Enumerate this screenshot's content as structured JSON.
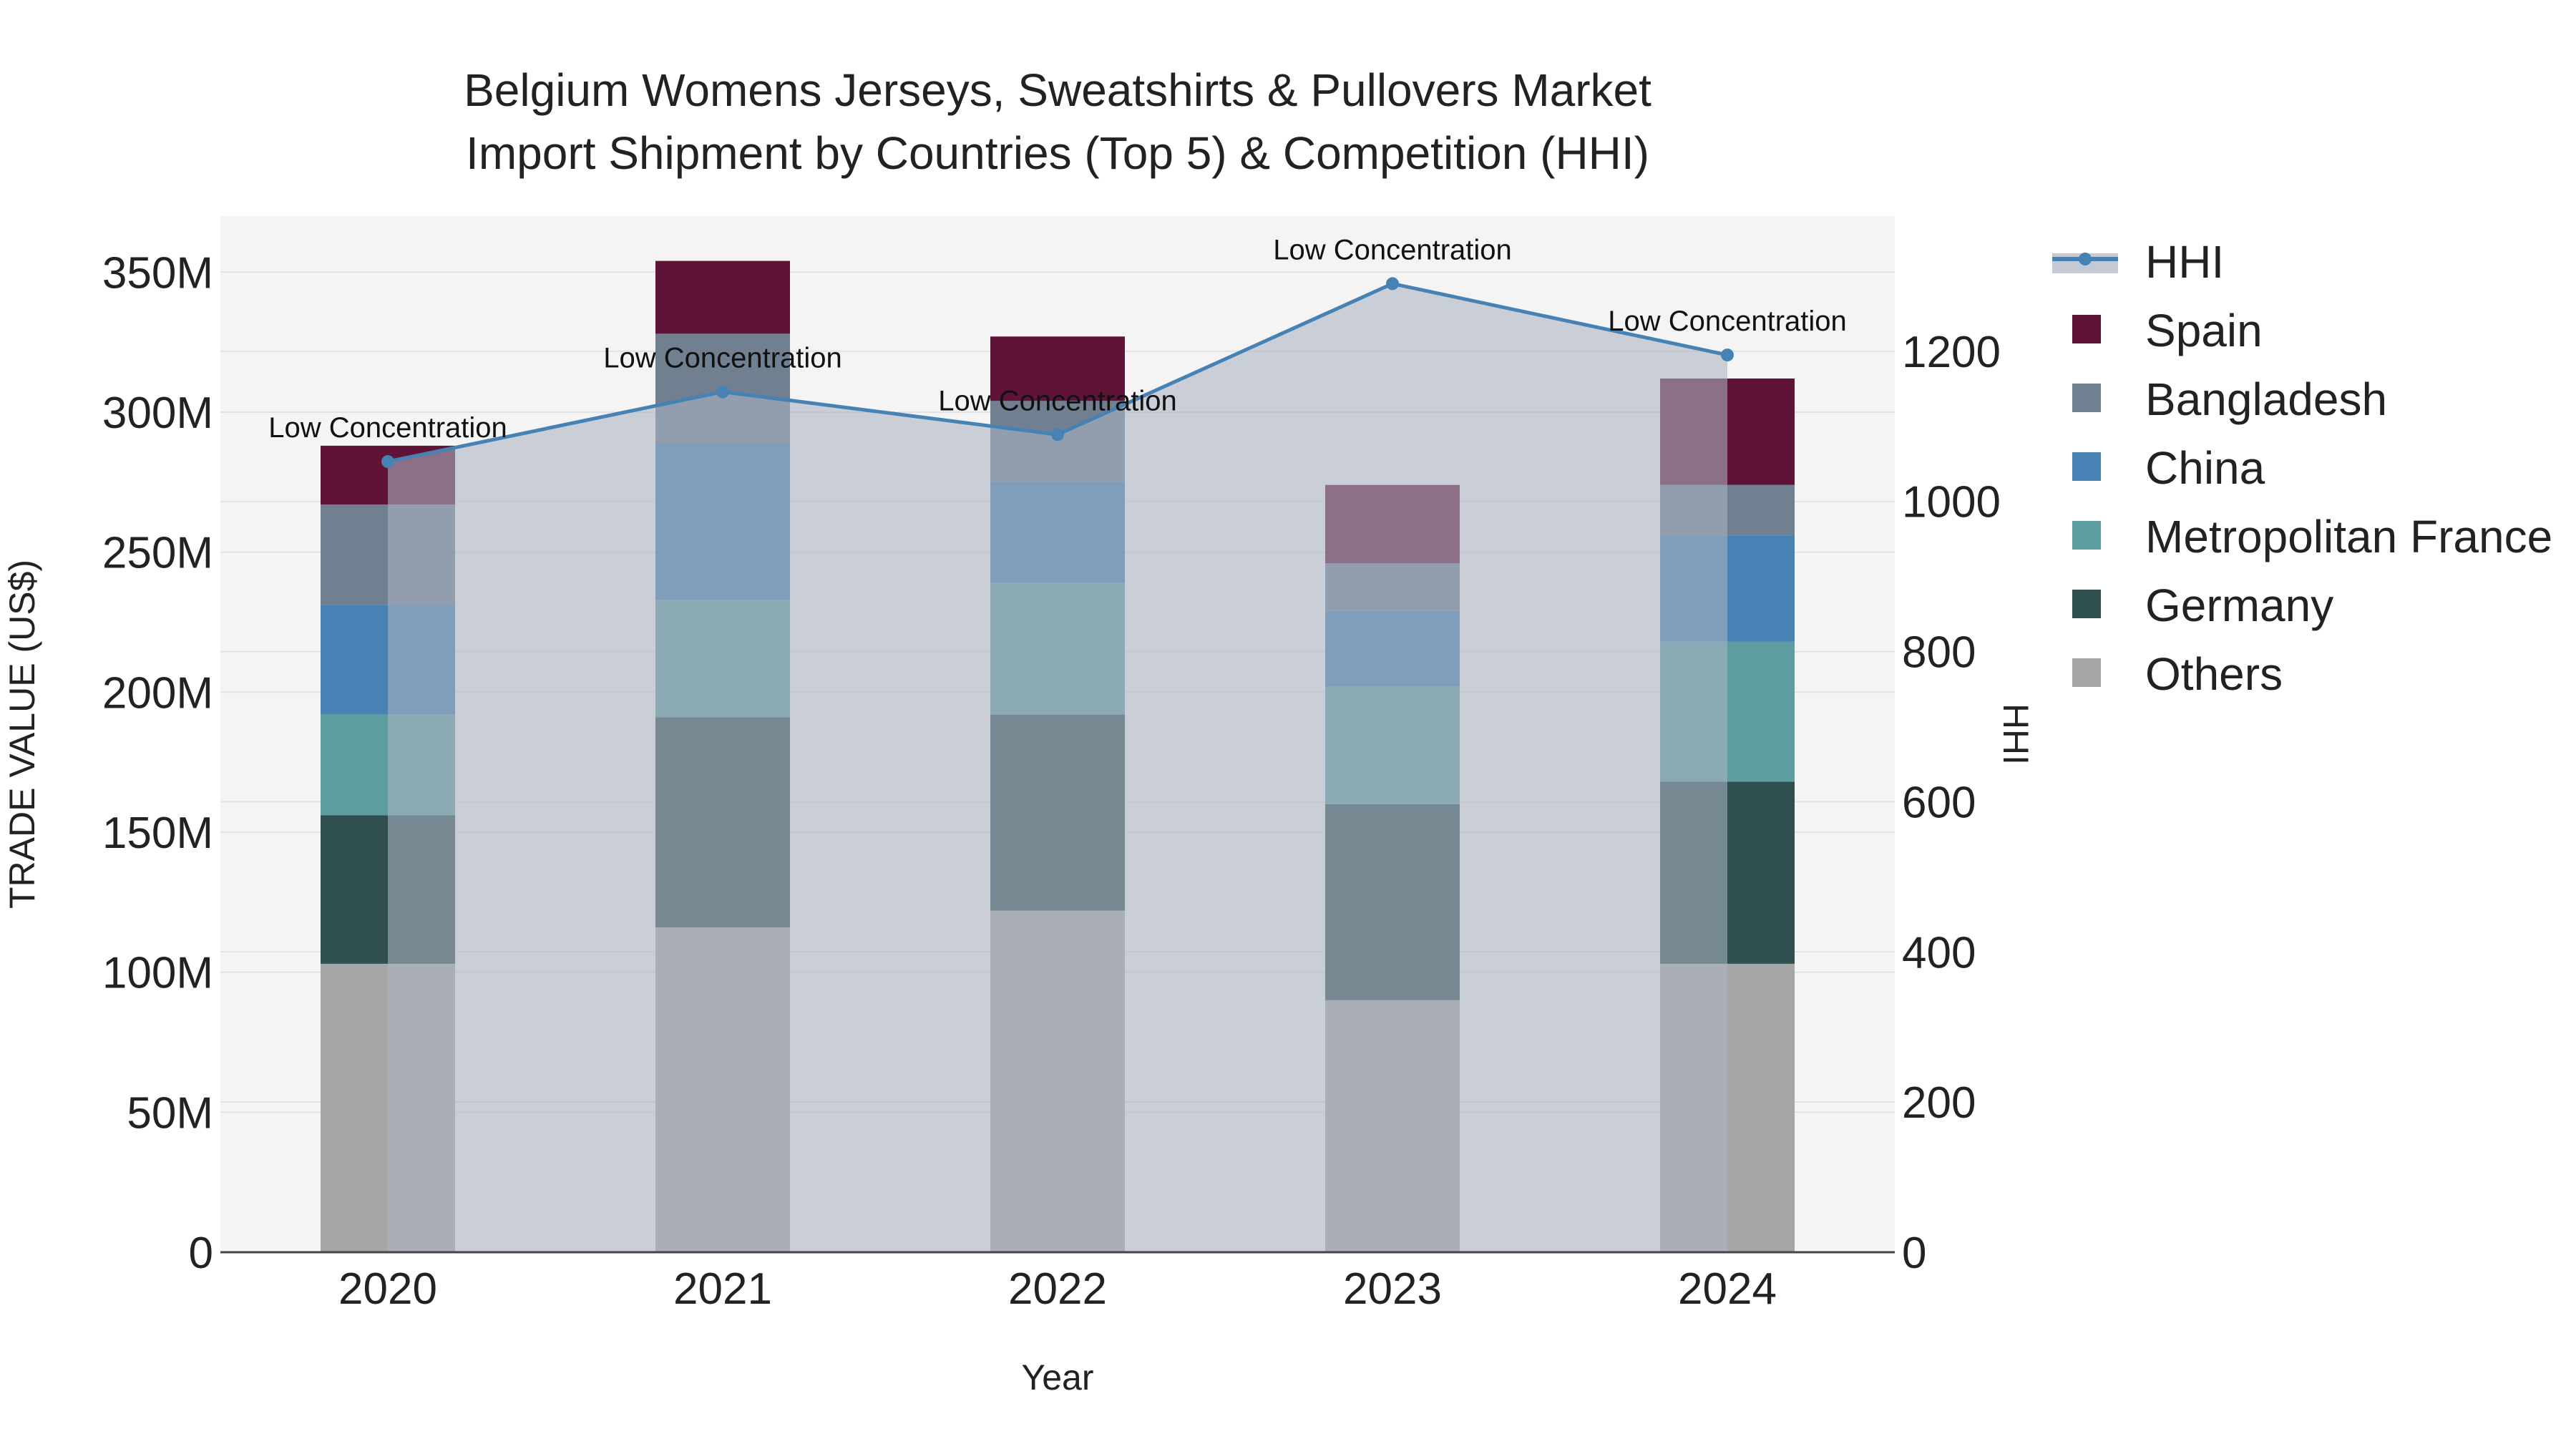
{
  "chart_data": {
    "type": "bar",
    "title_lines": [
      "Belgium Womens Jerseys, Sweatshirts & Pullovers Market",
      "Import Shipment by Countries (Top 5) & Competition (HHI)"
    ],
    "xlabel": "Year",
    "ylabel": "TRADE VALUE (US$)",
    "y2label": "HHI",
    "categories": [
      "2020",
      "2021",
      "2022",
      "2023",
      "2024"
    ],
    "ylim": [
      0,
      370000000
    ],
    "y2lim": [
      0,
      1380
    ],
    "yticks": [
      {
        "value": 0,
        "label": "0"
      },
      {
        "value": 50000000,
        "label": "50M"
      },
      {
        "value": 100000000,
        "label": "100M"
      },
      {
        "value": 150000000,
        "label": "150M"
      },
      {
        "value": 200000000,
        "label": "200M"
      },
      {
        "value": 250000000,
        "label": "250M"
      },
      {
        "value": 300000000,
        "label": "300M"
      },
      {
        "value": 350000000,
        "label": "350M"
      }
    ],
    "y2ticks": [
      {
        "value": 0,
        "label": "0"
      },
      {
        "value": 200,
        "label": "200"
      },
      {
        "value": 400,
        "label": "400"
      },
      {
        "value": 600,
        "label": "600"
      },
      {
        "value": 800,
        "label": "800"
      },
      {
        "value": 1000,
        "label": "1000"
      },
      {
        "value": 1200,
        "label": "1200"
      }
    ],
    "stack_order": [
      "Others",
      "Germany",
      "Metropolitan France",
      "China",
      "Bangladesh",
      "Spain"
    ],
    "series": [
      {
        "name": "Others",
        "color": "#a6a6a6",
        "values": [
          103000000,
          116000000,
          122000000,
          90000000,
          103000000
        ]
      },
      {
        "name": "Germany",
        "color": "#2f4f4f",
        "values": [
          53000000,
          75000000,
          70000000,
          70000000,
          65000000
        ]
      },
      {
        "name": "Metropolitan France",
        "color": "#5f9ea0",
        "values": [
          36000000,
          42000000,
          47000000,
          42000000,
          50000000
        ]
      },
      {
        "name": "China",
        "color": "#4682b4",
        "values": [
          39000000,
          56000000,
          36000000,
          27000000,
          38000000
        ]
      },
      {
        "name": "Bangladesh",
        "color": "#708090",
        "values": [
          36000000,
          39000000,
          29000000,
          17000000,
          18000000
        ]
      },
      {
        "name": "Spain",
        "color": "#5f1336",
        "values": [
          21000000,
          26000000,
          23000000,
          28000000,
          38000000
        ]
      }
    ],
    "hhi": {
      "name": "HHI",
      "color": "#4682b4",
      "values": [
        1053,
        1146,
        1089,
        1290,
        1195
      ],
      "annotations": [
        "Low Concentration",
        "Low Concentration",
        "Low Concentration",
        "Low Concentration",
        "Low Concentration"
      ]
    },
    "legend": [
      "HHI",
      "Spain",
      "Bangladesh",
      "China",
      "Metropolitan France",
      "Germany",
      "Others"
    ],
    "legend_placement": "right",
    "grid": true
  }
}
